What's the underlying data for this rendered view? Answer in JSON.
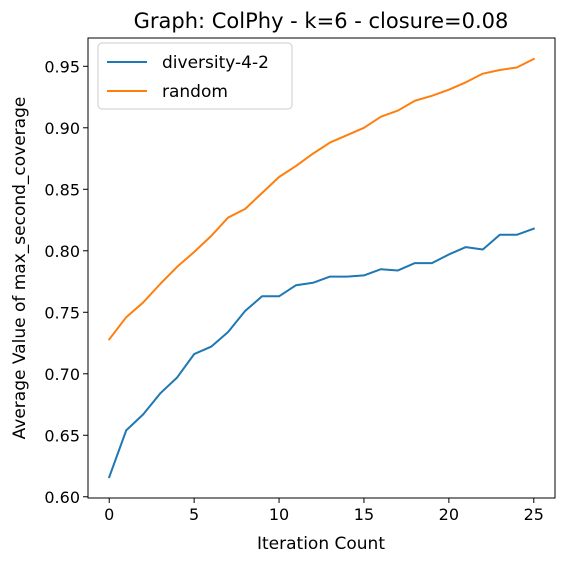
{
  "chart_data": {
    "type": "line",
    "title": "Graph: ColPhy - k=6 - closure=0.08",
    "xlabel": "Iteration Count",
    "ylabel": "Average Value of max_second_coverage",
    "xlim": [
      -1.25,
      26.25
    ],
    "ylim": [
      0.599,
      0.973
    ],
    "xticks": [
      0,
      5,
      10,
      15,
      20,
      25
    ],
    "xtick_labels": [
      "0",
      "5",
      "10",
      "15",
      "20",
      "25"
    ],
    "yticks": [
      0.6,
      0.65,
      0.7,
      0.75,
      0.8,
      0.85,
      0.9,
      0.95
    ],
    "ytick_labels": [
      "0.60",
      "0.65",
      "0.70",
      "0.75",
      "0.80",
      "0.85",
      "0.90",
      "0.95"
    ],
    "grid": false,
    "legend_position": "top-left",
    "x": [
      0,
      1,
      2,
      3,
      4,
      5,
      6,
      7,
      8,
      9,
      10,
      11,
      12,
      13,
      14,
      15,
      16,
      17,
      18,
      19,
      20,
      21,
      22,
      23,
      24,
      25
    ],
    "series": [
      {
        "name": "diversity-4-2",
        "color": "#1f77b4",
        "values": [
          0.616,
          0.654,
          0.667,
          0.684,
          0.697,
          0.716,
          0.722,
          0.734,
          0.751,
          0.763,
          0.763,
          0.772,
          0.774,
          0.779,
          0.779,
          0.78,
          0.785,
          0.784,
          0.79,
          0.79,
          0.797,
          0.803,
          0.801,
          0.813,
          0.813,
          0.818
        ]
      },
      {
        "name": "random",
        "color": "#ff7f0e",
        "values": [
          0.728,
          0.746,
          0.758,
          0.773,
          0.787,
          0.799,
          0.812,
          0.827,
          0.834,
          0.847,
          0.86,
          0.869,
          0.879,
          0.888,
          0.894,
          0.9,
          0.909,
          0.914,
          0.922,
          0.926,
          0.931,
          0.937,
          0.944,
          0.947,
          0.949,
          0.956
        ]
      }
    ]
  }
}
